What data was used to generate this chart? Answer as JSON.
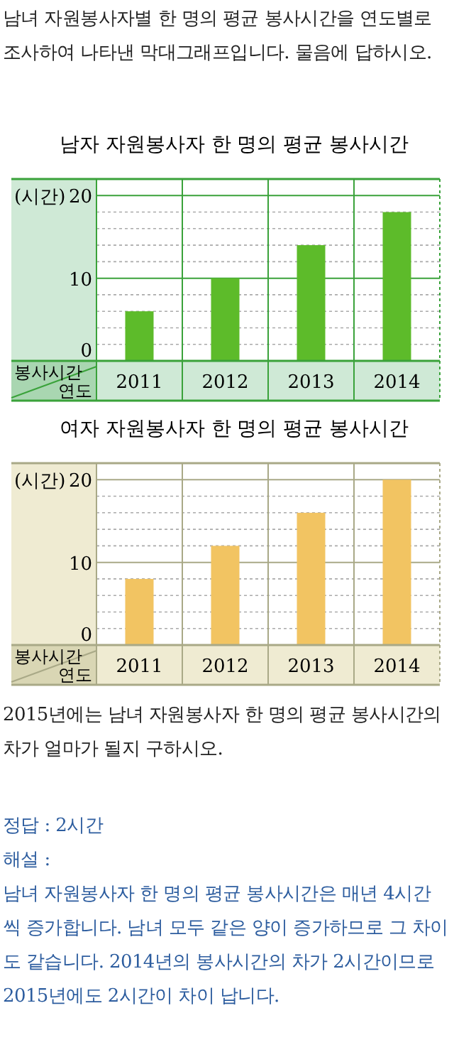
{
  "chart_data": [
    {
      "type": "bar",
      "title": "남자 자원봉사자 한 명의 평균 봉사시간",
      "ylabel": "(시간)",
      "xlabel": "연도",
      "annotations": [
        "봉사시간",
        "남녀 자원봉사자별 한 명의 평균 봉사시간을 연도별로 조사하여 나타낸 막대그래프입니다. 물음에 답하시오."
      ],
      "categories": [
        "2011",
        "2012",
        "2013",
        "2014"
      ],
      "values": [
        6,
        10,
        14,
        18
      ],
      "color": "#5dbb2a",
      "ylim": [
        0,
        22
      ],
      "yticks": [
        0,
        10,
        20
      ],
      "grid": true
    },
    {
      "type": "bar",
      "title": "여자 자원봉사자 한 명의 평균 봉사시간",
      "ylabel": "(시간)",
      "xlabel": "연도",
      "annotations": [
        "봉사시간",
        "2015년에는 남녀 자원봉사자 한 명의 평균 봉사시간의 차가 얼마가 될지 구하시오.",
        "정답 : 2시간",
        "해설 :",
        "남녀 자원봉사자 한 명의 평균 봉사시간은 매년 4시간씩 증가합니다. 남녀 모두 같은 양이 증가하므로 그 차이도 같습니다. 2014년의 봉사시간의 차가 2시간이므로 2015년에도 2시간이 차이 납니다."
      ],
      "categories": [
        "2011",
        "2012",
        "2013",
        "2014"
      ],
      "values": [
        8,
        12,
        16,
        20
      ],
      "color": "#f2c462",
      "ylim": [
        0,
        22
      ],
      "yticks": [
        0,
        10,
        20
      ],
      "grid": true
    }
  ]
}
